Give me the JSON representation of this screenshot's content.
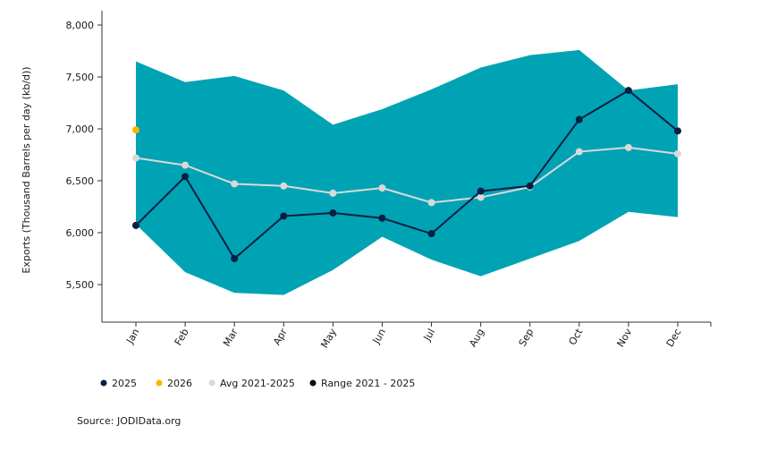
{
  "chart_data": {
    "type": "line",
    "categories": [
      "Jan",
      "Feb",
      "Mar",
      "Apr",
      "May",
      "Jun",
      "Jul",
      "Aug",
      "Sep",
      "Oct",
      "Nov",
      "Dec"
    ],
    "ylabel": "Exports (Thousand Barrels per day (kb/d))",
    "xlabel": "",
    "ylim": [
      5000,
      8000
    ],
    "yticks": [
      5500,
      6000,
      6500,
      7000,
      7500,
      8000
    ],
    "ytick_labels": [
      "5,500",
      "6,000",
      "6,500",
      "7,000",
      "7,500",
      "8,000"
    ],
    "grid": false,
    "legend_position": "bottom-left",
    "range": {
      "name": "Range 2021 - 2025",
      "color": "#00A3B4",
      "min": [
        6080,
        5620,
        5420,
        5400,
        5640,
        5960,
        5740,
        5580,
        5750,
        5920,
        6200,
        6150
      ],
      "max": [
        7650,
        7450,
        7510,
        7370,
        7040,
        7190,
        7380,
        7590,
        7710,
        7760,
        7370,
        7430
      ]
    },
    "series": [
      {
        "name": "2025",
        "color": "#0A1F44",
        "values": [
          6070,
          6540,
          5750,
          6160,
          6190,
          6140,
          5990,
          6400,
          6450,
          7090,
          7370,
          6980
        ]
      },
      {
        "name": "Avg 2021-2025",
        "color": "#D9D9D9",
        "values": [
          6720,
          6650,
          6470,
          6450,
          6380,
          6430,
          6290,
          6340,
          6440,
          6780,
          6820,
          6760
        ]
      },
      {
        "name": "2026",
        "color": "#F5B700",
        "values": [
          6990,
          null,
          null,
          null,
          null,
          null,
          null,
          null,
          null,
          null,
          null,
          null
        ]
      }
    ],
    "legend": [
      {
        "label": "2025",
        "color": "#0A1F44"
      },
      {
        "label": "2026",
        "color": "#F5B700"
      },
      {
        "label": "Avg 2021-2025",
        "color": "#D9D9D9"
      },
      {
        "label": "Range 2021 - 2025",
        "color": "#0A0A0A"
      }
    ]
  },
  "source_text": "Source: JODIData.org"
}
